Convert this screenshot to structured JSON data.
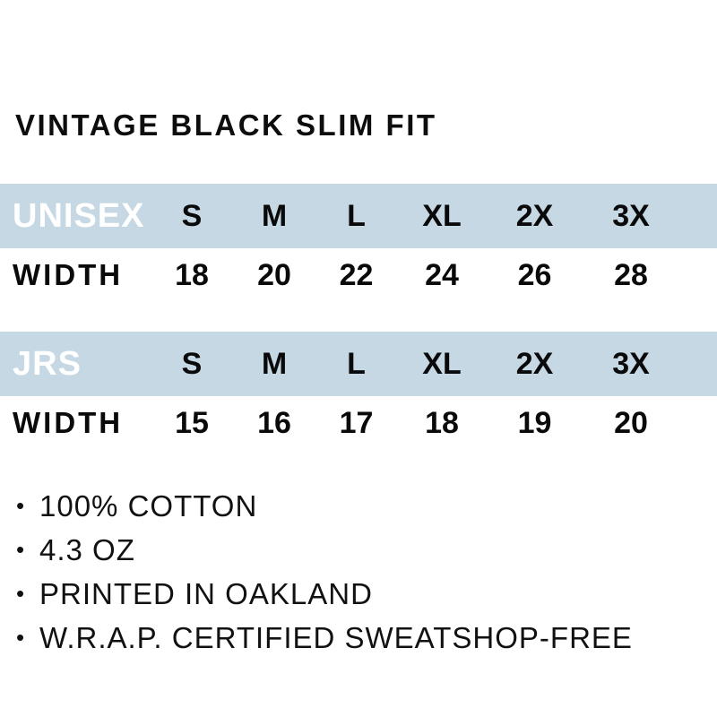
{
  "title": "VINTAGE BLACK SLIM FIT",
  "colors": {
    "band_background": "#c5d8e4",
    "band_label_text": "#ffffff",
    "body_text": "#0a0a0a",
    "page_background": "#ffffff"
  },
  "size_chart": {
    "columns": [
      "S",
      "M",
      "L",
      "XL",
      "2X",
      "3X"
    ],
    "tables": [
      {
        "label": "UNISEX",
        "row_label": "WIDTH",
        "values": [
          "18",
          "20",
          "22",
          "24",
          "26",
          "28"
        ]
      },
      {
        "label": "JRS",
        "row_label": "WIDTH",
        "values": [
          "15",
          "16",
          "17",
          "18",
          "19",
          "20"
        ]
      }
    ]
  },
  "details": {
    "bullet_char": "•",
    "items": [
      "100% COTTON",
      "4.3 OZ",
      "PRINTED IN OAKLAND",
      "W.R.A.P. CERTIFIED SWEATSHOP-FREE"
    ]
  }
}
